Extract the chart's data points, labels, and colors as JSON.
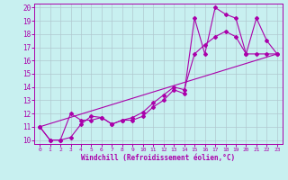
{
  "xlabel": "Windchill (Refroidissement éolien,°C)",
  "bg_color": "#c8f0f0",
  "line_color": "#aa00aa",
  "grid_color": "#b0c8d0",
  "xlim": [
    -0.5,
    23.5
  ],
  "ylim": [
    9.7,
    20.3
  ],
  "xticks": [
    0,
    1,
    2,
    3,
    4,
    5,
    6,
    7,
    8,
    9,
    10,
    11,
    12,
    13,
    14,
    15,
    16,
    17,
    18,
    19,
    20,
    21,
    22,
    23
  ],
  "yticks": [
    10,
    11,
    12,
    13,
    14,
    15,
    16,
    17,
    18,
    19,
    20
  ],
  "line1_x": [
    0,
    1,
    2,
    3,
    4,
    5,
    6,
    7,
    8,
    9,
    10,
    11,
    12,
    13,
    14,
    15,
    16,
    17,
    18,
    19,
    20,
    21,
    22,
    23
  ],
  "line1_y": [
    11,
    10,
    10,
    12,
    11.5,
    11.5,
    11.7,
    11.2,
    11.5,
    11.5,
    11.8,
    12.5,
    13.0,
    13.8,
    13.5,
    19.2,
    16.5,
    20.0,
    19.5,
    19.2,
    16.5,
    19.2,
    17.5,
    16.5
  ],
  "line2_x": [
    0,
    1,
    2,
    3,
    4,
    5,
    6,
    7,
    8,
    9,
    10,
    11,
    12,
    13,
    14,
    15,
    16,
    17,
    18,
    19,
    20,
    21,
    22,
    23
  ],
  "line2_y": [
    11,
    10,
    10,
    10.2,
    11.2,
    11.8,
    11.7,
    11.2,
    11.5,
    11.7,
    12.1,
    12.8,
    13.4,
    14.0,
    13.8,
    16.5,
    17.2,
    17.8,
    18.2,
    17.8,
    16.5,
    16.5,
    16.5,
    16.5
  ],
  "line3_x": [
    0,
    23
  ],
  "line3_y": [
    11,
    16.5
  ],
  "marker": "D",
  "markersize": 2.0,
  "linewidth": 0.8
}
